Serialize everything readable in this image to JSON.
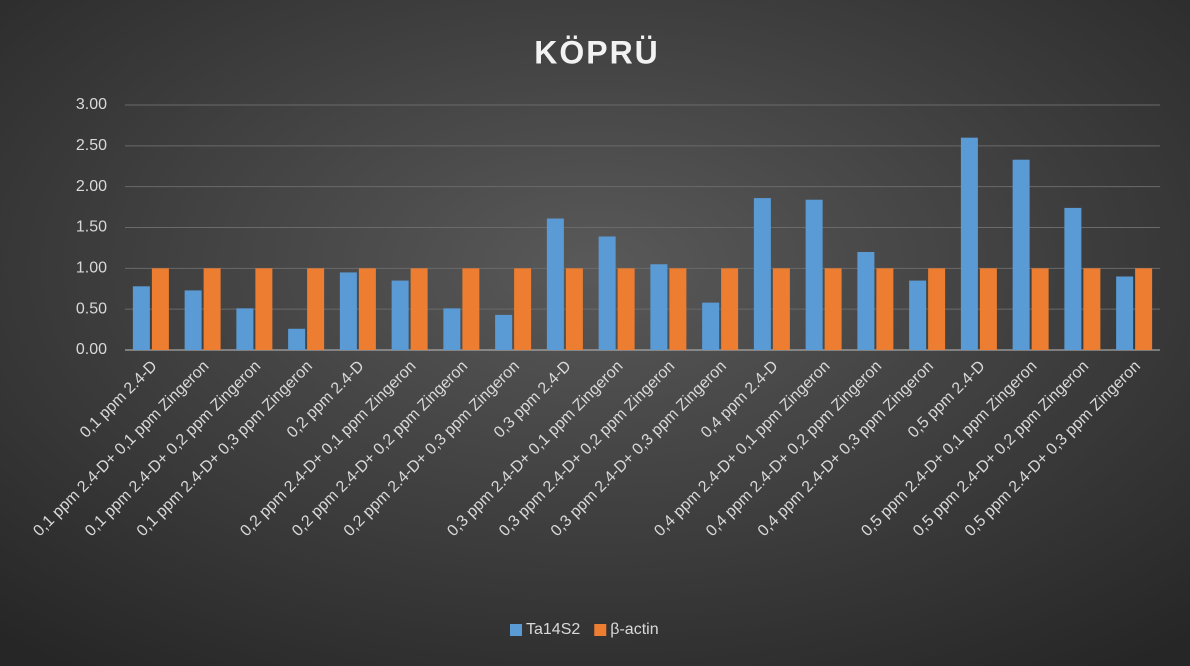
{
  "chart_data": {
    "type": "bar",
    "title": "KÖPRÜ",
    "categories": [
      "0,1 ppm 2.4-D",
      "0,1 ppm 2.4-D+ 0,1 ppm Zingeron",
      "0,1 ppm 2.4-D+ 0,2 ppm Zingeron",
      "0,1 ppm 2.4-D+ 0,3 ppm Zingeron",
      "0,2 ppm 2.4-D",
      "0,2 ppm 2.4-D+ 0,1 ppm Zingeron",
      "0,2 ppm 2.4-D+ 0,2 ppm Zingeron",
      "0,2 ppm 2.4-D+ 0,3 ppm Zingeron",
      "0,3 ppm 2.4-D",
      "0,3 ppm 2.4-D+ 0,1 ppm Zingeron",
      "0,3 ppm 2.4-D+ 0,2 ppm Zingeron",
      "0,3 ppm 2.4-D+ 0,3 ppm Zingeron",
      "0,4 ppm 2.4-D",
      "0,4 ppm 2.4-D+ 0,1 ppm Zingeron",
      "0,4 ppm 2.4-D+ 0,2 ppm Zingeron",
      "0,4 ppm 2.4-D+ 0,3 ppm Zingeron",
      "0,5 ppm 2.4-D",
      "0,5 ppm 2.4-D+ 0,1 ppm Zingeron",
      "0,5 ppm 2.4-D+ 0,2 ppm Zingeron",
      "0,5 ppm 2.4-D+ 0,3 ppm Zingeron"
    ],
    "series": [
      {
        "name": "Ta14S2",
        "color": "#5b9bd5",
        "values": [
          0.78,
          0.73,
          0.51,
          0.26,
          0.95,
          0.85,
          0.51,
          0.43,
          1.61,
          1.39,
          1.05,
          0.58,
          1.86,
          1.84,
          1.2,
          0.85,
          2.6,
          2.33,
          1.74,
          0.9
        ]
      },
      {
        "name": "β-actin",
        "color": "#ed7d31",
        "values": [
          1,
          1,
          1,
          1,
          1,
          1,
          1,
          1,
          1,
          1,
          1,
          1,
          1,
          1,
          1,
          1,
          1,
          1,
          1,
          1
        ]
      }
    ],
    "ylim": [
      0,
      3
    ],
    "yticks": [
      {
        "value": 0,
        "label": "0.00"
      },
      {
        "value": 0.5,
        "label": "0.50"
      },
      {
        "value": 1,
        "label": "1.00"
      },
      {
        "value": 1.5,
        "label": "1.50"
      },
      {
        "value": 2,
        "label": "2.00"
      },
      {
        "value": 2.5,
        "label": "2.50"
      },
      {
        "value": 3,
        "label": "3.00"
      }
    ],
    "grid": true,
    "legend": "bottom"
  }
}
